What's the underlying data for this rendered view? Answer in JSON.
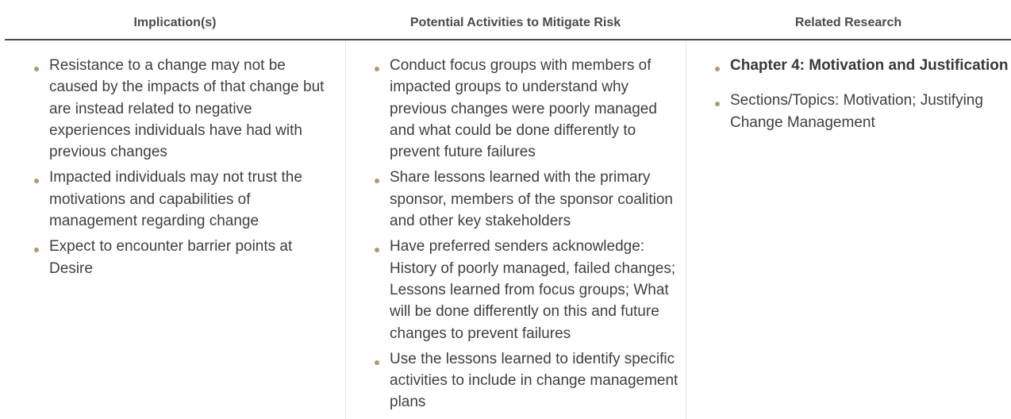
{
  "colors": {
    "bullet": "#b09a6d",
    "header_rule": "#4a4a4a",
    "divider": "#e6e6e6",
    "text": "#3f3f3f"
  },
  "table": {
    "headers": [
      "Implication(s)",
      "Potential Activities to Mitigate Risk",
      "Related Research"
    ],
    "implications": [
      "Resistance to a change may not be caused by the impacts of that change but are instead related to negative experiences individuals have had with previous changes",
      "Impacted individuals may not trust the motivations and capabilities of management regarding change",
      "Expect to encounter barrier points at Desire"
    ],
    "activities": [
      "Conduct focus groups with members of impacted groups to understand why previous changes were poorly managed and what could be done differently to prevent future failures",
      "Share lessons learned with the primary sponsor, members of the sponsor coalition and other key stakeholders",
      "Have preferred senders acknowledge: History of poorly managed, failed changes; Lessons learned from focus groups; What will be done differently on this and future changes to prevent failures",
      "Use the lessons learned to identify specific activities to include in change management plans"
    ],
    "research": [
      "Chapter 4: Motivation and Justification",
      "Sections/Topics: Motivation; Justifying Change Management"
    ]
  }
}
